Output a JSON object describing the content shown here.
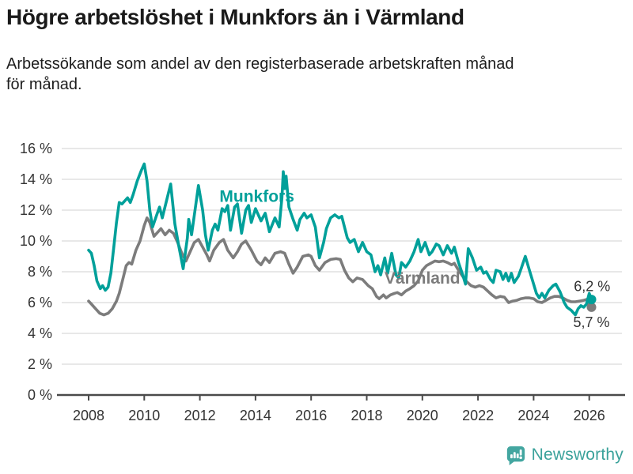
{
  "header": {
    "title": "Högre arbetslöshet i Munkfors än i Värmland",
    "subtitle_line1": "Arbetssökande som andel av den registerbaserade arbetskraften månad",
    "subtitle_line2": "för månad."
  },
  "footer": {
    "brand": "Newsworthy"
  },
  "colors": {
    "munkfors": "#00a09a",
    "varmland": "#7c7c7c",
    "grid": "#d9d9d9",
    "axis": "#4a4a4a",
    "tick_text": "#333333",
    "end_label_text": "#333333",
    "logo_teal": "#43a6a0",
    "brand_text": "#3ba29b"
  },
  "chart_data": {
    "type": "line",
    "title": "",
    "xlabel": "",
    "ylabel": "",
    "grid": true,
    "legend_position": "inline-labels",
    "xlim": [
      2008,
      2027.2
    ],
    "ylim": [
      0,
      16
    ],
    "x_ticks": [
      2008,
      2010,
      2012,
      2014,
      2016,
      2018,
      2020,
      2022,
      2024,
      2026
    ],
    "y_ticks": [
      0,
      2,
      4,
      6,
      8,
      10,
      12,
      14,
      16
    ],
    "y_tick_suffix": " %",
    "series": [
      {
        "name": "Munkfors",
        "color": "#00a09a",
        "end_label": "6,2 %",
        "end_label_pos": [
          2026.1,
          7.05
        ],
        "label_pos": [
          2014.05,
          12.9
        ],
        "points": [
          [
            2008.0,
            9.4
          ],
          [
            2008.1,
            9.2
          ],
          [
            2008.2,
            8.4
          ],
          [
            2008.3,
            7.4
          ],
          [
            2008.42,
            6.9
          ],
          [
            2008.5,
            7.1
          ],
          [
            2008.6,
            6.8
          ],
          [
            2008.7,
            7.0
          ],
          [
            2008.8,
            7.9
          ],
          [
            2008.9,
            9.5
          ],
          [
            2009.0,
            11.2
          ],
          [
            2009.1,
            12.5
          ],
          [
            2009.2,
            12.4
          ],
          [
            2009.3,
            12.6
          ],
          [
            2009.4,
            12.8
          ],
          [
            2009.5,
            12.5
          ],
          [
            2009.6,
            13.0
          ],
          [
            2009.75,
            13.9
          ],
          [
            2009.9,
            14.6
          ],
          [
            2010.0,
            15.0
          ],
          [
            2010.1,
            13.9
          ],
          [
            2010.2,
            12.0
          ],
          [
            2010.3,
            10.9
          ],
          [
            2010.45,
            11.7
          ],
          [
            2010.55,
            12.2
          ],
          [
            2010.65,
            11.5
          ],
          [
            2010.8,
            12.6
          ],
          [
            2010.95,
            13.7
          ],
          [
            2011.1,
            11.1
          ],
          [
            2011.25,
            9.6
          ],
          [
            2011.4,
            8.2
          ],
          [
            2011.55,
            10.2
          ],
          [
            2011.6,
            11.4
          ],
          [
            2011.7,
            10.4
          ],
          [
            2011.85,
            12.3
          ],
          [
            2011.95,
            13.6
          ],
          [
            2012.1,
            12.0
          ],
          [
            2012.2,
            10.4
          ],
          [
            2012.3,
            9.4
          ],
          [
            2012.45,
            10.7
          ],
          [
            2012.55,
            11.1
          ],
          [
            2012.65,
            10.7
          ],
          [
            2012.8,
            12.1
          ],
          [
            2012.9,
            11.9
          ],
          [
            2013.0,
            12.3
          ],
          [
            2013.1,
            10.7
          ],
          [
            2013.25,
            12.2
          ],
          [
            2013.35,
            12.4
          ],
          [
            2013.5,
            10.5
          ],
          [
            2013.65,
            12.0
          ],
          [
            2013.75,
            12.3
          ],
          [
            2013.85,
            11.2
          ],
          [
            2014.0,
            12.1
          ],
          [
            2014.2,
            11.3
          ],
          [
            2014.35,
            11.8
          ],
          [
            2014.5,
            10.6
          ],
          [
            2014.7,
            11.5
          ],
          [
            2014.85,
            10.9
          ],
          [
            2014.95,
            12.8
          ],
          [
            2015.0,
            14.5
          ],
          [
            2015.05,
            13.4
          ],
          [
            2015.1,
            14.2
          ],
          [
            2015.2,
            12.2
          ],
          [
            2015.35,
            11.4
          ],
          [
            2015.5,
            10.7
          ],
          [
            2015.6,
            11.4
          ],
          [
            2015.75,
            11.8
          ],
          [
            2015.85,
            11.5
          ],
          [
            2016.0,
            11.7
          ],
          [
            2016.15,
            10.9
          ],
          [
            2016.3,
            8.9
          ],
          [
            2016.45,
            9.9
          ],
          [
            2016.55,
            10.8
          ],
          [
            2016.7,
            11.5
          ],
          [
            2016.85,
            11.7
          ],
          [
            2017.0,
            11.5
          ],
          [
            2017.1,
            11.6
          ],
          [
            2017.3,
            10.2
          ],
          [
            2017.4,
            9.9
          ],
          [
            2017.55,
            10.1
          ],
          [
            2017.7,
            9.3
          ],
          [
            2017.85,
            9.9
          ],
          [
            2018.0,
            9.3
          ],
          [
            2018.15,
            9.1
          ],
          [
            2018.3,
            8.0
          ],
          [
            2018.4,
            8.4
          ],
          [
            2018.5,
            7.8
          ],
          [
            2018.65,
            8.9
          ],
          [
            2018.75,
            7.9
          ],
          [
            2018.9,
            9.2
          ],
          [
            2019.05,
            7.8
          ],
          [
            2019.15,
            7.6
          ],
          [
            2019.25,
            8.6
          ],
          [
            2019.4,
            8.3
          ],
          [
            2019.55,
            8.7
          ],
          [
            2019.7,
            9.3
          ],
          [
            2019.85,
            10.1
          ],
          [
            2019.95,
            9.3
          ],
          [
            2020.1,
            9.9
          ],
          [
            2020.25,
            9.1
          ],
          [
            2020.35,
            9.3
          ],
          [
            2020.5,
            9.8
          ],
          [
            2020.6,
            9.7
          ],
          [
            2020.75,
            9.1
          ],
          [
            2020.9,
            9.7
          ],
          [
            2021.05,
            9.2
          ],
          [
            2021.15,
            9.6
          ],
          [
            2021.3,
            8.6
          ],
          [
            2021.45,
            7.8
          ],
          [
            2021.55,
            7.2
          ],
          [
            2021.65,
            9.5
          ],
          [
            2021.8,
            8.9
          ],
          [
            2021.95,
            8.1
          ],
          [
            2022.1,
            8.3
          ],
          [
            2022.2,
            7.9
          ],
          [
            2022.3,
            8.0
          ],
          [
            2022.45,
            7.5
          ],
          [
            2022.55,
            7.3
          ],
          [
            2022.65,
            8.1
          ],
          [
            2022.8,
            8.0
          ],
          [
            2022.9,
            7.5
          ],
          [
            2023.0,
            7.9
          ],
          [
            2023.1,
            7.4
          ],
          [
            2023.2,
            7.9
          ],
          [
            2023.3,
            7.3
          ],
          [
            2023.45,
            7.7
          ],
          [
            2023.55,
            8.2
          ],
          [
            2023.7,
            9.0
          ],
          [
            2023.85,
            8.1
          ],
          [
            2024.0,
            7.2
          ],
          [
            2024.1,
            6.6
          ],
          [
            2024.2,
            6.3
          ],
          [
            2024.3,
            6.6
          ],
          [
            2024.4,
            6.3
          ],
          [
            2024.55,
            6.8
          ],
          [
            2024.7,
            7.1
          ],
          [
            2024.8,
            7.2
          ],
          [
            2024.95,
            6.7
          ],
          [
            2025.1,
            6.0
          ],
          [
            2025.2,
            5.7
          ],
          [
            2025.35,
            5.5
          ],
          [
            2025.5,
            5.2
          ],
          [
            2025.6,
            5.6
          ],
          [
            2025.7,
            5.8
          ],
          [
            2025.8,
            5.7
          ],
          [
            2025.9,
            5.9
          ],
          [
            2026.0,
            6.6
          ],
          [
            2026.08,
            6.2
          ]
        ]
      },
      {
        "name": "Värmland",
        "color": "#7c7c7c",
        "end_label": "5,7 %",
        "end_label_pos": [
          2026.08,
          4.72
        ],
        "label_pos": [
          2020.0,
          7.6
        ],
        "points": [
          [
            2008.0,
            6.1
          ],
          [
            2008.1,
            5.9
          ],
          [
            2008.25,
            5.6
          ],
          [
            2008.4,
            5.3
          ],
          [
            2008.55,
            5.2
          ],
          [
            2008.7,
            5.3
          ],
          [
            2008.85,
            5.6
          ],
          [
            2009.0,
            6.1
          ],
          [
            2009.1,
            6.6
          ],
          [
            2009.2,
            7.3
          ],
          [
            2009.35,
            8.4
          ],
          [
            2009.45,
            8.6
          ],
          [
            2009.55,
            8.5
          ],
          [
            2009.7,
            9.4
          ],
          [
            2009.85,
            10.0
          ],
          [
            2010.0,
            11.0
          ],
          [
            2010.1,
            11.5
          ],
          [
            2010.2,
            11.2
          ],
          [
            2010.35,
            10.3
          ],
          [
            2010.5,
            10.6
          ],
          [
            2010.6,
            10.8
          ],
          [
            2010.75,
            10.4
          ],
          [
            2010.9,
            10.7
          ],
          [
            2011.05,
            10.5
          ],
          [
            2011.2,
            9.9
          ],
          [
            2011.35,
            9.2
          ],
          [
            2011.5,
            8.7
          ],
          [
            2011.65,
            9.3
          ],
          [
            2011.8,
            9.9
          ],
          [
            2011.95,
            10.1
          ],
          [
            2012.1,
            9.6
          ],
          [
            2012.25,
            9.1
          ],
          [
            2012.35,
            8.7
          ],
          [
            2012.5,
            9.4
          ],
          [
            2012.7,
            9.9
          ],
          [
            2012.85,
            10.1
          ],
          [
            2013.0,
            9.4
          ],
          [
            2013.2,
            8.9
          ],
          [
            2013.35,
            9.3
          ],
          [
            2013.5,
            9.8
          ],
          [
            2013.65,
            10.0
          ],
          [
            2013.85,
            9.4
          ],
          [
            2014.05,
            8.7
          ],
          [
            2014.2,
            8.45
          ],
          [
            2014.35,
            8.9
          ],
          [
            2014.5,
            8.6
          ],
          [
            2014.7,
            9.2
          ],
          [
            2014.9,
            9.3
          ],
          [
            2015.05,
            9.2
          ],
          [
            2015.2,
            8.5
          ],
          [
            2015.35,
            7.9
          ],
          [
            2015.5,
            8.3
          ],
          [
            2015.7,
            9.0
          ],
          [
            2015.9,
            9.1
          ],
          [
            2016.0,
            9.0
          ],
          [
            2016.15,
            8.4
          ],
          [
            2016.3,
            8.1
          ],
          [
            2016.5,
            8.6
          ],
          [
            2016.7,
            8.8
          ],
          [
            2016.9,
            8.85
          ],
          [
            2017.05,
            8.8
          ],
          [
            2017.2,
            8.1
          ],
          [
            2017.35,
            7.6
          ],
          [
            2017.5,
            7.35
          ],
          [
            2017.65,
            7.6
          ],
          [
            2017.85,
            7.5
          ],
          [
            2018.05,
            7.1
          ],
          [
            2018.2,
            6.9
          ],
          [
            2018.35,
            6.4
          ],
          [
            2018.45,
            6.25
          ],
          [
            2018.6,
            6.5
          ],
          [
            2018.7,
            6.3
          ],
          [
            2018.85,
            6.5
          ],
          [
            2019.0,
            6.6
          ],
          [
            2019.1,
            6.65
          ],
          [
            2019.25,
            6.5
          ],
          [
            2019.4,
            6.75
          ],
          [
            2019.55,
            6.9
          ],
          [
            2019.7,
            7.1
          ],
          [
            2019.85,
            7.4
          ],
          [
            2020.0,
            8.1
          ],
          [
            2020.15,
            8.4
          ],
          [
            2020.3,
            8.55
          ],
          [
            2020.45,
            8.7
          ],
          [
            2020.6,
            8.65
          ],
          [
            2020.75,
            8.7
          ],
          [
            2020.9,
            8.6
          ],
          [
            2021.05,
            8.45
          ],
          [
            2021.15,
            8.55
          ],
          [
            2021.3,
            8.1
          ],
          [
            2021.45,
            7.7
          ],
          [
            2021.6,
            7.35
          ],
          [
            2021.75,
            7.1
          ],
          [
            2021.9,
            7.0
          ],
          [
            2022.05,
            7.1
          ],
          [
            2022.2,
            7.0
          ],
          [
            2022.35,
            6.75
          ],
          [
            2022.5,
            6.5
          ],
          [
            2022.65,
            6.3
          ],
          [
            2022.8,
            6.4
          ],
          [
            2022.95,
            6.35
          ],
          [
            2023.1,
            6.0
          ],
          [
            2023.25,
            6.1
          ],
          [
            2023.4,
            6.15
          ],
          [
            2023.55,
            6.25
          ],
          [
            2023.7,
            6.3
          ],
          [
            2023.85,
            6.3
          ],
          [
            2024.0,
            6.25
          ],
          [
            2024.15,
            6.05
          ],
          [
            2024.3,
            6.0
          ],
          [
            2024.45,
            6.15
          ],
          [
            2024.6,
            6.3
          ],
          [
            2024.75,
            6.4
          ],
          [
            2024.9,
            6.4
          ],
          [
            2025.05,
            6.3
          ],
          [
            2025.2,
            6.15
          ],
          [
            2025.35,
            6.05
          ],
          [
            2025.5,
            6.05
          ],
          [
            2025.65,
            6.1
          ],
          [
            2025.8,
            6.15
          ],
          [
            2025.9,
            6.2
          ],
          [
            2026.0,
            5.9
          ],
          [
            2026.08,
            5.7
          ]
        ]
      }
    ]
  }
}
